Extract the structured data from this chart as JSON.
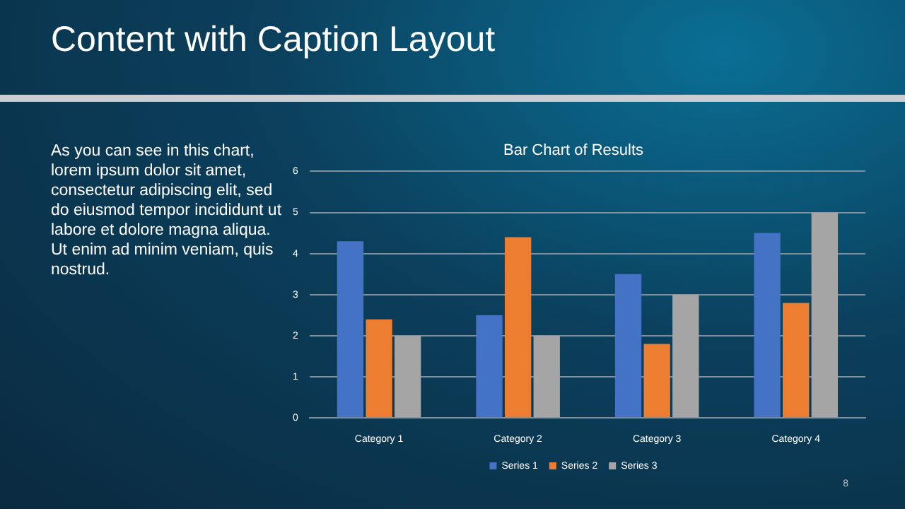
{
  "chart_data": {
    "type": "bar",
    "title": "Bar Chart of Results",
    "annotations": [
      "Content with Caption Layout",
      "As you can see in this chart, lorem ipsum dolor sit amet, consectetur adipiscing elit, sed do eiusmod tempor incididunt ut labore et dolore magna aliqua. Ut enim ad minim veniam, quis nostrud.",
      "8"
    ],
    "categories": [
      "Category 1",
      "Category 2",
      "Category 3",
      "Category 4"
    ],
    "series": [
      {
        "name": "Series 1",
        "color": "#4472c4",
        "values": [
          4.3,
          2.5,
          3.5,
          4.5
        ]
      },
      {
        "name": "Series 2",
        "color": "#ed7d31",
        "values": [
          2.4,
          4.4,
          1.8,
          2.8
        ]
      },
      {
        "name": "Series 3",
        "color": "#a5a5a5",
        "values": [
          2,
          2,
          3,
          5
        ]
      }
    ],
    "ylim": [
      0,
      6
    ],
    "yticks": [
      0,
      1,
      2,
      3,
      4,
      5,
      6
    ],
    "grid": "y",
    "legend": "bottom"
  }
}
